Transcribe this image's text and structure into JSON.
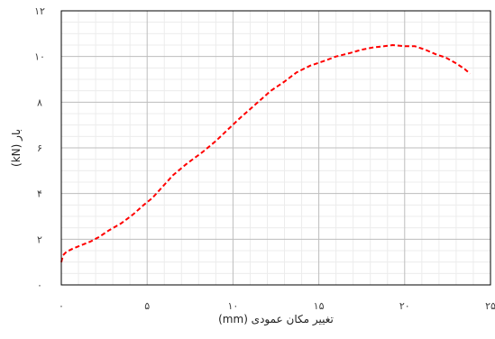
{
  "chart_data": {
    "type": "line",
    "xlabel": "تغییر مکان عمودی (mm)",
    "ylabel": "بار (kN)",
    "xlim": [
      0,
      25
    ],
    "ylim": [
      0,
      12
    ],
    "x_ticks": [
      0,
      5,
      10,
      15,
      20,
      25
    ],
    "y_ticks": [
      0,
      2,
      4,
      6,
      8,
      10,
      12
    ],
    "x_tick_labels": [
      "۰",
      "۵",
      "۱۰",
      "۱۵",
      "۲۰",
      "۲۵"
    ],
    "y_tick_labels": [
      "۰",
      "۲",
      "۴",
      "۶",
      "۸",
      "۱۰",
      "۱۲"
    ],
    "grid": true,
    "series": [
      {
        "color": "#ff0000",
        "line_style": "dashed",
        "x": [
          0,
          0.1,
          0.3,
          0.7,
          1.2,
          1.7,
          2.2,
          2.8,
          3.5,
          4.2,
          4.8,
          5.3,
          5.9,
          6.5,
          7.3,
          8.2,
          9.0,
          9.7,
          10.4,
          11.3,
          12.2,
          13.0,
          13.7,
          14.5,
          15.3,
          16.0,
          16.8,
          17.5,
          18.2,
          18.8,
          19.3,
          20.0,
          20.6,
          21.2,
          21.8,
          22.4,
          23.0,
          23.5,
          23.8
        ],
        "y": [
          1.0,
          1.3,
          1.45,
          1.6,
          1.75,
          1.9,
          2.1,
          2.4,
          2.7,
          3.1,
          3.5,
          3.8,
          4.3,
          4.8,
          5.3,
          5.8,
          6.3,
          6.8,
          7.3,
          7.9,
          8.5,
          8.9,
          9.3,
          9.6,
          9.8,
          10.0,
          10.15,
          10.3,
          10.4,
          10.45,
          10.5,
          10.45,
          10.45,
          10.3,
          10.1,
          9.95,
          9.7,
          9.45,
          9.25
        ]
      }
    ]
  }
}
